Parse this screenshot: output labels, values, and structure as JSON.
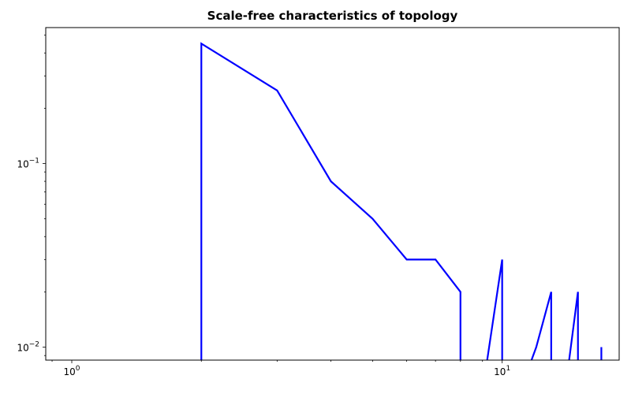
{
  "chart_data": {
    "type": "line",
    "title": "Scale-free characteristics of topology",
    "xlabel": "",
    "ylabel": "",
    "xscale": "log",
    "yscale": "log",
    "xlim": [
      0.87,
      18.7
    ],
    "ylim": [
      0.0085,
      0.55
    ],
    "grid": false,
    "legend": "none",
    "x_ticks": [
      {
        "value": 1,
        "base": "10",
        "exp": "0"
      },
      {
        "value": 10,
        "base": "10",
        "exp": "1"
      }
    ],
    "y_ticks": [
      {
        "value": 0.01,
        "base": "10",
        "exp": "−2"
      },
      {
        "value": 0.1,
        "base": "10",
        "exp": "−1"
      }
    ],
    "series": [
      {
        "color": "#0000ff",
        "points": [
          [
            2,
            0.0
          ],
          [
            2,
            0.45
          ],
          [
            3,
            0.25
          ],
          [
            4,
            0.08
          ],
          [
            5,
            0.05
          ],
          [
            6,
            0.03
          ],
          [
            7,
            0.03
          ],
          [
            8,
            0.02
          ],
          [
            8,
            0.0
          ],
          [
            9,
            0.0
          ],
          [
            10,
            0.03
          ],
          [
            10,
            0.0
          ],
          [
            11,
            0.0
          ],
          [
            12,
            0.01
          ],
          [
            13,
            0.02
          ],
          [
            13,
            0.0
          ],
          [
            14,
            0.0
          ],
          [
            15,
            0.02
          ],
          [
            15,
            0.0
          ],
          [
            16,
            0.0
          ],
          [
            17,
            0.0
          ],
          [
            17,
            0.01
          ]
        ]
      }
    ]
  }
}
